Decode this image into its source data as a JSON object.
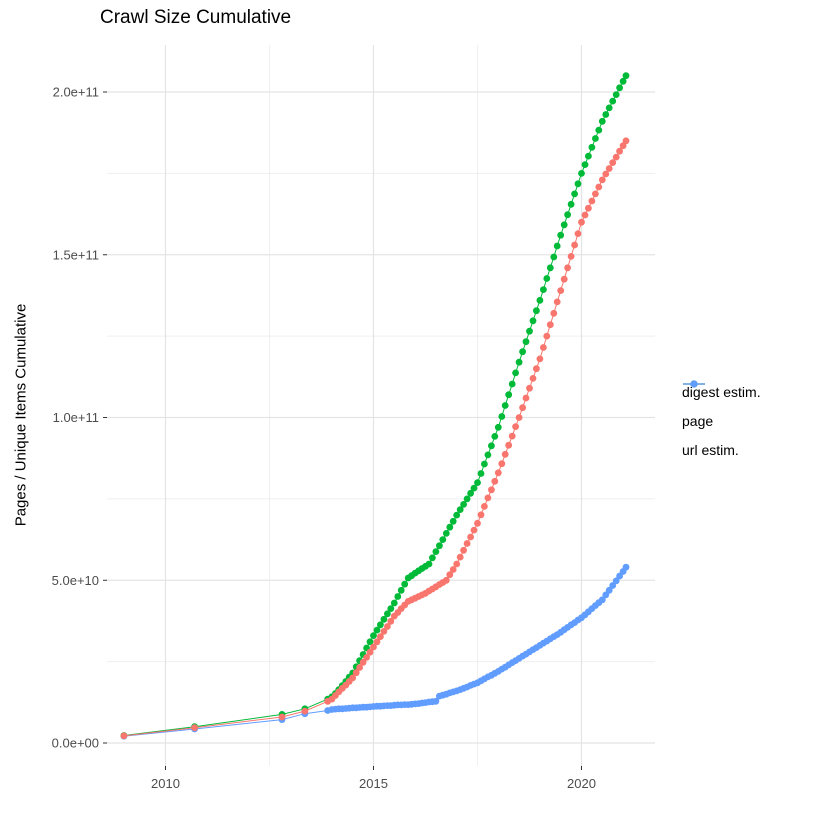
{
  "title": "Crawl Size Cumulative",
  "y_axis_label": "Pages / Unique Items Cumulative",
  "axes": {
    "x": {
      "tick_labels": [
        "2010",
        "2015",
        "2020"
      ],
      "tick_years": [
        2010,
        2015,
        2020
      ],
      "minor_years": [
        2012.5,
        2017.5
      ]
    },
    "y": {
      "tick_labels": [
        "0.0e+00",
        "5.0e+10",
        "1.0e+11",
        "1.5e+11",
        "2.0e+11"
      ],
      "tick_values_billion": [
        0,
        50,
        100,
        150,
        200
      ],
      "minor_values_billion": [
        25,
        75,
        125,
        175
      ]
    }
  },
  "legend": {
    "items": [
      {
        "label": "digest estim.",
        "color": "#F8766D"
      },
      {
        "label": "page",
        "color": "#00BA38"
      },
      {
        "label": "url estim.",
        "color": "#619CFF"
      }
    ]
  },
  "chart_data": {
    "type": "scatter",
    "title": "Crawl Size Cumulative",
    "xlabel": "",
    "ylabel": "Pages / Unique Items Cumulative",
    "xlim": [
      2008.6,
      2021.8
    ],
    "ylim_billion": [
      -8,
      214
    ],
    "grid": "major and minor, light gray, white background",
    "legend_position": "right",
    "units": "billions (1e9) of pages / unique items, cumulative",
    "x_years": [
      2009.0,
      2010.7,
      2012.8,
      2013.35,
      2013.9,
      2014.0,
      2014.083,
      2014.167,
      2014.25,
      2014.333,
      2014.417,
      2014.5,
      2014.583,
      2014.667,
      2014.75,
      2014.833,
      2014.917,
      2015.0,
      2015.083,
      2015.167,
      2015.25,
      2015.333,
      2015.417,
      2015.5,
      2015.583,
      2015.667,
      2015.75,
      2015.833,
      2015.917,
      2016.0,
      2016.083,
      2016.167,
      2016.25,
      2016.333,
      2016.417,
      2016.5,
      2016.583,
      2016.667,
      2016.75,
      2016.833,
      2016.917,
      2017.0,
      2017.083,
      2017.167,
      2017.25,
      2017.333,
      2017.417,
      2017.5,
      2017.583,
      2017.667,
      2017.75,
      2017.833,
      2017.917,
      2018.0,
      2018.083,
      2018.167,
      2018.25,
      2018.333,
      2018.417,
      2018.5,
      2018.583,
      2018.667,
      2018.75,
      2018.833,
      2018.917,
      2019.0,
      2019.083,
      2019.167,
      2019.25,
      2019.333,
      2019.417,
      2019.5,
      2019.583,
      2019.667,
      2019.75,
      2019.833,
      2019.917,
      2020.0,
      2020.083,
      2020.167,
      2020.25,
      2020.333,
      2020.417,
      2020.5,
      2020.583,
      2020.667,
      2020.75,
      2020.833,
      2020.917,
      2021.0,
      2021.07
    ],
    "series": [
      {
        "name": "digest estim.",
        "color": "#F8766D",
        "values_billion": [
          2.2,
          4.7,
          8.0,
          9.8,
          12.8,
          13.5,
          14.6,
          15.7,
          16.8,
          17.8,
          18.9,
          20.0,
          21.6,
          23.2,
          24.8,
          26.3,
          27.9,
          29.5,
          31.1,
          32.7,
          34.3,
          35.8,
          37.4,
          39.0,
          40.1,
          41.3,
          42.4,
          43.5,
          44.0,
          44.5,
          45.0,
          45.5,
          46.0,
          46.7,
          47.3,
          48.0,
          48.7,
          49.3,
          50.0,
          51.7,
          53.3,
          55.0,
          57.1,
          59.2,
          61.3,
          63.3,
          65.4,
          67.5,
          70.1,
          72.7,
          75.3,
          77.8,
          80.4,
          83.0,
          85.8,
          88.7,
          91.5,
          94.3,
          97.2,
          100.0,
          103.0,
          106.0,
          109.0,
          112.0,
          115.0,
          118.0,
          121.5,
          125.0,
          128.5,
          132.0,
          135.5,
          139.0,
          142.5,
          146.0,
          149.5,
          153.0,
          156.5,
          160.0,
          162.2,
          164.3,
          166.5,
          168.7,
          170.8,
          173.0,
          174.8,
          176.5,
          178.3,
          180.0,
          181.8,
          183.5,
          185.0
        ]
      },
      {
        "name": "page",
        "color": "#00BA38",
        "values_billion": [
          2.3,
          5.0,
          8.8,
          10.5,
          13.5,
          14.2,
          15.2,
          16.4,
          17.6,
          18.9,
          20.2,
          21.5,
          23.4,
          25.3,
          27.2,
          29.2,
          31.1,
          33.0,
          34.7,
          36.3,
          38.0,
          39.7,
          41.3,
          43.0,
          45.0,
          46.9,
          48.8,
          50.7,
          51.4,
          52.2,
          52.9,
          53.6,
          54.3,
          55.0,
          56.9,
          58.8,
          60.6,
          62.5,
          64.4,
          66.3,
          68.1,
          70.0,
          71.7,
          73.3,
          75.0,
          76.7,
          78.3,
          80.0,
          82.8,
          85.7,
          88.5,
          91.3,
          94.2,
          97.0,
          100.3,
          103.7,
          107.0,
          110.3,
          113.7,
          117.0,
          120.2,
          123.3,
          126.5,
          129.7,
          132.8,
          136.0,
          139.3,
          142.7,
          146.0,
          149.3,
          152.7,
          156.0,
          159.2,
          162.3,
          165.5,
          168.7,
          171.8,
          175.0,
          177.7,
          180.3,
          183.0,
          185.7,
          188.3,
          191.0,
          193.1,
          195.1,
          197.2,
          199.2,
          201.3,
          203.3,
          205.0
        ]
      },
      {
        "name": "url estim.",
        "color": "#619CFF",
        "values_billion": [
          2.1,
          4.3,
          7.2,
          9.0,
          10.0,
          10.3,
          10.4,
          10.5,
          10.5,
          10.6,
          10.7,
          10.8,
          10.8,
          10.9,
          11.0,
          11.0,
          11.1,
          11.2,
          11.3,
          11.3,
          11.4,
          11.5,
          11.5,
          11.6,
          11.7,
          11.7,
          11.8,
          11.8,
          11.9,
          12.0,
          12.1,
          12.3,
          12.4,
          12.6,
          12.7,
          12.8,
          14.4,
          14.7,
          15.0,
          15.4,
          15.7,
          16.0,
          16.4,
          16.8,
          17.2,
          17.7,
          18.1,
          18.5,
          19.1,
          19.7,
          20.3,
          20.8,
          21.4,
          22.0,
          22.7,
          23.3,
          24.0,
          24.7,
          25.3,
          26.0,
          26.7,
          27.3,
          28.0,
          28.7,
          29.3,
          30.0,
          30.7,
          31.3,
          32.0,
          32.7,
          33.3,
          34.0,
          34.8,
          35.5,
          36.3,
          37.0,
          37.8,
          38.5,
          39.4,
          40.3,
          41.3,
          42.2,
          43.1,
          44.0,
          45.5,
          46.9,
          48.4,
          49.8,
          51.3,
          52.7,
          54.0
        ]
      }
    ]
  }
}
